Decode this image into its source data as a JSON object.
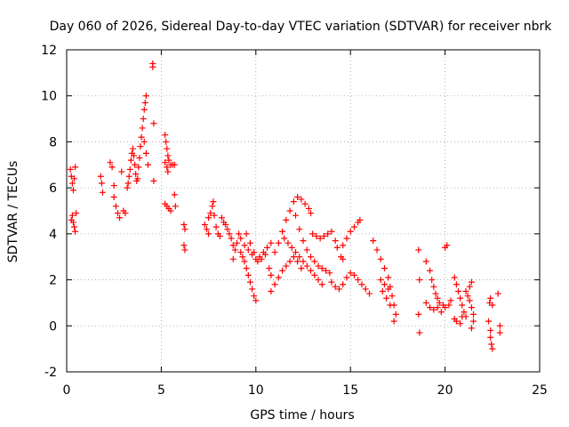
{
  "chart_data": {
    "type": "scatter",
    "title": "Day 060 of 2026, Sidereal Day-to-day VTEC variation (SDTVAR) for receiver nbrk",
    "xlabel": "GPS time / hours",
    "ylabel": "SDTVAR / TECUs",
    "xlim": [
      0,
      25
    ],
    "ylim": [
      -2,
      12
    ],
    "xticks": [
      0,
      5,
      10,
      15,
      20,
      25
    ],
    "yticks": [
      -2,
      0,
      2,
      4,
      6,
      8,
      10,
      12
    ],
    "grid": true,
    "marker": "plus",
    "series": [
      {
        "name": "SDTVAR",
        "color": "#ff0000",
        "points": [
          [
            0.2,
            6.8
          ],
          [
            0.25,
            6.5
          ],
          [
            0.3,
            6.2
          ],
          [
            0.35,
            5.9
          ],
          [
            0.4,
            6.4
          ],
          [
            0.45,
            6.9
          ],
          [
            0.3,
            4.8
          ],
          [
            0.35,
            4.5
          ],
          [
            0.4,
            4.3
          ],
          [
            0.45,
            4.1
          ],
          [
            0.5,
            4.9
          ],
          [
            0.25,
            4.6
          ],
          [
            1.8,
            6.5
          ],
          [
            1.85,
            6.2
          ],
          [
            1.9,
            5.8
          ],
          [
            2.3,
            7.1
          ],
          [
            2.4,
            6.9
          ],
          [
            2.5,
            6.1
          ],
          [
            2.5,
            5.6
          ],
          [
            2.6,
            5.2
          ],
          [
            2.7,
            4.9
          ],
          [
            2.8,
            4.7
          ],
          [
            2.9,
            6.7
          ],
          [
            3.0,
            5.0
          ],
          [
            3.1,
            4.9
          ],
          [
            3.2,
            6.0
          ],
          [
            3.25,
            6.2
          ],
          [
            3.3,
            6.5
          ],
          [
            3.35,
            6.8
          ],
          [
            3.4,
            7.2
          ],
          [
            3.45,
            7.5
          ],
          [
            3.5,
            7.7
          ],
          [
            3.55,
            7.4
          ],
          [
            3.6,
            7.0
          ],
          [
            3.65,
            6.6
          ],
          [
            3.7,
            6.3
          ],
          [
            3.75,
            6.4
          ],
          [
            3.8,
            6.9
          ],
          [
            3.85,
            7.3
          ],
          [
            3.9,
            7.8
          ],
          [
            3.95,
            8.2
          ],
          [
            4.0,
            8.6
          ],
          [
            4.05,
            9.0
          ],
          [
            4.1,
            9.4
          ],
          [
            4.15,
            9.7
          ],
          [
            4.2,
            10.0
          ],
          [
            4.1,
            8.0
          ],
          [
            4.2,
            7.5
          ],
          [
            4.3,
            7.0
          ],
          [
            4.55,
            11.4
          ],
          [
            4.55,
            11.25
          ],
          [
            4.6,
            8.8
          ],
          [
            4.6,
            6.3
          ],
          [
            5.2,
            8.3
          ],
          [
            5.25,
            8.0
          ],
          [
            5.3,
            7.7
          ],
          [
            5.35,
            7.4
          ],
          [
            5.4,
            7.2
          ],
          [
            5.5,
            7.0
          ],
          [
            5.6,
            7.0
          ],
          [
            5.7,
            7.0
          ],
          [
            5.2,
            7.1
          ],
          [
            5.3,
            6.9
          ],
          [
            5.35,
            6.7
          ],
          [
            5.2,
            5.3
          ],
          [
            5.3,
            5.2
          ],
          [
            5.4,
            5.1
          ],
          [
            5.5,
            5.0
          ],
          [
            5.7,
            5.7
          ],
          [
            5.75,
            5.2
          ],
          [
            6.2,
            4.4
          ],
          [
            6.25,
            4.2
          ],
          [
            6.2,
            3.5
          ],
          [
            6.25,
            3.3
          ],
          [
            7.3,
            4.4
          ],
          [
            7.4,
            4.2
          ],
          [
            7.5,
            4.0
          ],
          [
            7.5,
            4.7
          ],
          [
            7.6,
            4.9
          ],
          [
            7.7,
            5.2
          ],
          [
            7.75,
            5.4
          ],
          [
            7.8,
            4.8
          ],
          [
            7.9,
            4.3
          ],
          [
            8.0,
            4.0
          ],
          [
            8.1,
            3.9
          ],
          [
            8.2,
            4.7
          ],
          [
            8.3,
            4.5
          ],
          [
            8.4,
            4.4
          ],
          [
            8.5,
            4.2
          ],
          [
            8.6,
            4.0
          ],
          [
            8.7,
            3.8
          ],
          [
            8.8,
            3.5
          ],
          [
            8.9,
            3.3
          ],
          [
            8.8,
            2.9
          ],
          [
            9.0,
            3.6
          ],
          [
            9.1,
            4.0
          ],
          [
            9.2,
            3.2
          ],
          [
            9.3,
            3.0
          ],
          [
            9.4,
            2.8
          ],
          [
            9.5,
            2.5
          ],
          [
            9.6,
            2.2
          ],
          [
            9.7,
            1.9
          ],
          [
            9.8,
            1.6
          ],
          [
            9.9,
            1.3
          ],
          [
            10.0,
            1.1
          ],
          [
            9.2,
            3.8
          ],
          [
            9.4,
            3.5
          ],
          [
            9.6,
            3.3
          ],
          [
            9.8,
            3.1
          ],
          [
            10.0,
            2.9
          ],
          [
            10.2,
            3.0
          ],
          [
            10.4,
            3.2
          ],
          [
            10.6,
            3.4
          ],
          [
            10.8,
            3.6
          ],
          [
            9.5,
            4.0
          ],
          [
            9.7,
            3.6
          ],
          [
            9.9,
            3.2
          ],
          [
            10.1,
            2.8
          ],
          [
            10.3,
            2.9
          ],
          [
            10.5,
            3.1
          ],
          [
            10.7,
            2.5
          ],
          [
            10.8,
            2.2
          ],
          [
            10.8,
            1.5
          ],
          [
            11.0,
            1.8
          ],
          [
            11.2,
            2.1
          ],
          [
            11.4,
            2.4
          ],
          [
            11.6,
            2.6
          ],
          [
            11.8,
            2.8
          ],
          [
            12.0,
            3.0
          ],
          [
            12.2,
            2.8
          ],
          [
            12.4,
            2.5
          ],
          [
            11.0,
            3.2
          ],
          [
            11.2,
            3.6
          ],
          [
            11.4,
            4.1
          ],
          [
            11.6,
            4.6
          ],
          [
            11.8,
            5.0
          ],
          [
            12.0,
            5.4
          ],
          [
            12.2,
            5.6
          ],
          [
            12.4,
            5.5
          ],
          [
            12.6,
            5.3
          ],
          [
            12.8,
            5.1
          ],
          [
            12.9,
            4.9
          ],
          [
            11.5,
            3.8
          ],
          [
            11.7,
            3.6
          ],
          [
            11.9,
            3.4
          ],
          [
            12.1,
            3.2
          ],
          [
            12.3,
            3.0
          ],
          [
            12.5,
            2.8
          ],
          [
            12.7,
            2.6
          ],
          [
            12.9,
            2.4
          ],
          [
            13.1,
            2.2
          ],
          [
            13.3,
            2.0
          ],
          [
            13.5,
            1.8
          ],
          [
            12.1,
            4.8
          ],
          [
            12.3,
            4.2
          ],
          [
            12.5,
            3.7
          ],
          [
            12.7,
            3.3
          ],
          [
            12.9,
            3.0
          ],
          [
            13.1,
            2.8
          ],
          [
            13.3,
            2.6
          ],
          [
            13.5,
            2.5
          ],
          [
            13.7,
            2.4
          ],
          [
            13.9,
            2.3
          ],
          [
            13.0,
            4.0
          ],
          [
            13.2,
            3.9
          ],
          [
            13.4,
            3.8
          ],
          [
            13.6,
            3.9
          ],
          [
            13.8,
            4.0
          ],
          [
            14.0,
            4.1
          ],
          [
            14.2,
            3.7
          ],
          [
            14.3,
            3.4
          ],
          [
            14.5,
            3.0
          ],
          [
            14.6,
            2.9
          ],
          [
            14.0,
            1.9
          ],
          [
            14.2,
            1.7
          ],
          [
            14.4,
            1.6
          ],
          [
            14.6,
            1.8
          ],
          [
            14.8,
            2.1
          ],
          [
            15.0,
            2.3
          ],
          [
            15.2,
            2.2
          ],
          [
            15.4,
            2.0
          ],
          [
            15.6,
            1.8
          ],
          [
            15.8,
            1.6
          ],
          [
            16.0,
            1.4
          ],
          [
            14.6,
            3.5
          ],
          [
            14.8,
            3.8
          ],
          [
            15.0,
            4.1
          ],
          [
            15.2,
            4.3
          ],
          [
            15.4,
            4.5
          ],
          [
            15.5,
            4.6
          ],
          [
            16.2,
            3.7
          ],
          [
            16.4,
            3.3
          ],
          [
            16.6,
            2.9
          ],
          [
            16.8,
            2.5
          ],
          [
            17.0,
            2.1
          ],
          [
            17.1,
            1.7
          ],
          [
            17.2,
            1.3
          ],
          [
            17.3,
            0.9
          ],
          [
            17.4,
            0.5
          ],
          [
            17.3,
            0.2
          ],
          [
            16.7,
            1.5
          ],
          [
            16.9,
            1.2
          ],
          [
            17.1,
            0.9
          ],
          [
            16.6,
            2.0
          ],
          [
            16.8,
            1.8
          ],
          [
            17.0,
            1.6
          ],
          [
            18.6,
            3.3
          ],
          [
            18.65,
            2.0
          ],
          [
            18.6,
            0.5
          ],
          [
            18.65,
            -0.3
          ],
          [
            19.0,
            2.8
          ],
          [
            19.2,
            2.4
          ],
          [
            19.3,
            2.0
          ],
          [
            19.4,
            1.7
          ],
          [
            19.5,
            1.4
          ],
          [
            19.6,
            1.2
          ],
          [
            19.7,
            1.0
          ],
          [
            19.9,
            0.9
          ],
          [
            20.0,
            0.8
          ],
          [
            20.2,
            0.9
          ],
          [
            20.3,
            1.1
          ],
          [
            19.0,
            1.0
          ],
          [
            19.2,
            0.8
          ],
          [
            19.4,
            0.7
          ],
          [
            19.6,
            0.8
          ],
          [
            19.8,
            0.6
          ],
          [
            20.1,
            3.5
          ],
          [
            20.0,
            3.4
          ],
          [
            20.5,
            2.1
          ],
          [
            20.6,
            1.8
          ],
          [
            20.7,
            1.5
          ],
          [
            20.8,
            1.2
          ],
          [
            20.9,
            0.9
          ],
          [
            21.0,
            0.6
          ],
          [
            21.1,
            0.4
          ],
          [
            20.5,
            0.3
          ],
          [
            20.6,
            0.2
          ],
          [
            20.8,
            0.1
          ],
          [
            20.9,
            0.4
          ],
          [
            21.1,
            1.5
          ],
          [
            21.2,
            1.3
          ],
          [
            21.3,
            1.1
          ],
          [
            21.4,
            0.8
          ],
          [
            21.5,
            0.5
          ],
          [
            21.5,
            0.2
          ],
          [
            21.4,
            -0.1
          ],
          [
            21.3,
            1.7
          ],
          [
            21.4,
            1.9
          ],
          [
            22.3,
            0.2
          ],
          [
            22.4,
            -0.2
          ],
          [
            22.4,
            -0.5
          ],
          [
            22.45,
            -0.8
          ],
          [
            22.5,
            -1.0
          ],
          [
            22.35,
            1.0
          ],
          [
            22.4,
            1.2
          ],
          [
            22.5,
            0.9
          ],
          [
            22.8,
            1.4
          ],
          [
            22.9,
            0.0
          ],
          [
            22.9,
            -0.3
          ]
        ]
      }
    ]
  }
}
